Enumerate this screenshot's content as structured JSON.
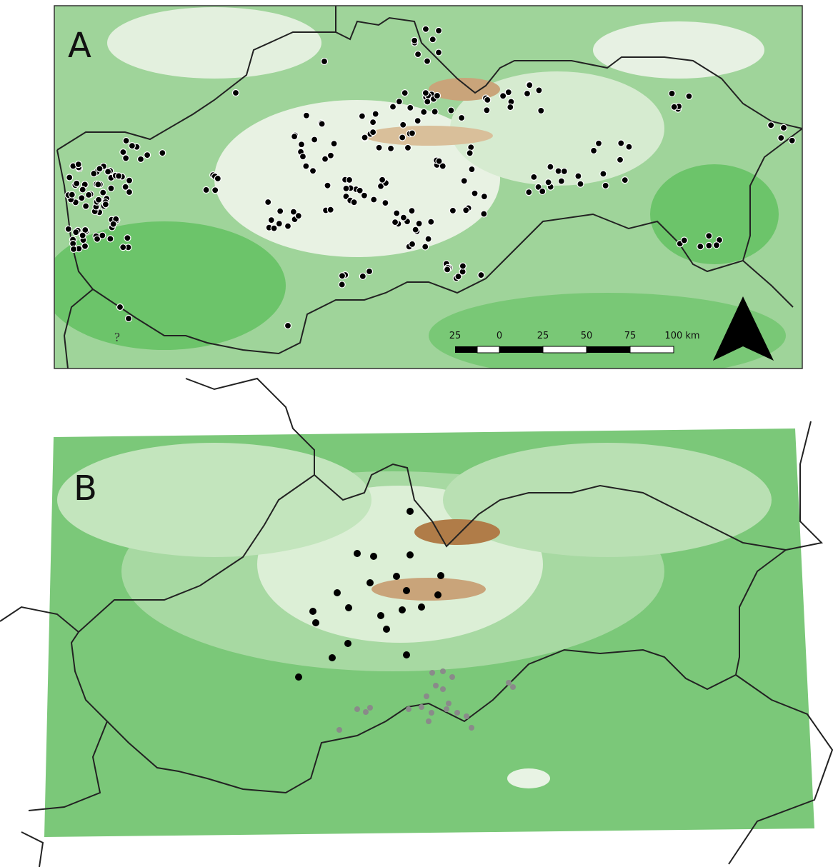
{
  "panels": [
    {
      "label": "A",
      "unknown_marker": "?",
      "scale_bar": {
        "labels": [
          "25",
          "0",
          "25",
          "50",
          "75",
          "100 km"
        ]
      }
    },
    {
      "label": "B"
    }
  ]
}
